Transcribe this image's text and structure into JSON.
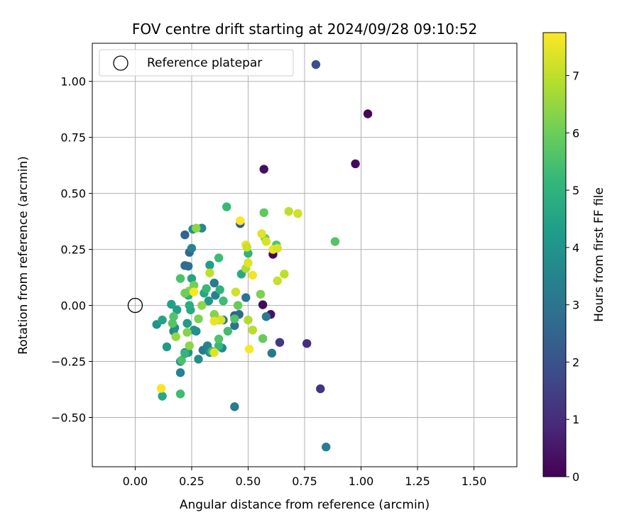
{
  "chart_data": {
    "type": "scatter",
    "title": "FOV centre drift starting at 2024/09/28 09:10:52",
    "xlabel": "Angular distance from reference (arcmin)",
    "ylabel": "Rotation from reference (arcmin)",
    "xlim": [
      -0.19,
      1.69
    ],
    "ylim": [
      -0.72,
      1.17
    ],
    "x_ticks": [
      0.0,
      0.25,
      0.5,
      0.75,
      1.0,
      1.25,
      1.5
    ],
    "x_tick_labels": [
      "0.00",
      "0.25",
      "0.50",
      "0.75",
      "1.00",
      "1.25",
      "1.50"
    ],
    "y_ticks": [
      -0.5,
      -0.25,
      0.0,
      0.25,
      0.5,
      0.75,
      1.0
    ],
    "y_tick_labels": [
      "−0.50",
      "−0.25",
      "0.00",
      "0.25",
      "0.50",
      "0.75",
      "1.00"
    ],
    "grid": true,
    "legend": {
      "position": "top-left",
      "label": "Reference platepar"
    },
    "reference_point": {
      "x": 0.0,
      "y": 0.0
    },
    "colorbar": {
      "label": "Hours from first FF file",
      "min": 0,
      "max": 7.75,
      "ticks": [
        0,
        1,
        2,
        3,
        4,
        5,
        6,
        7
      ],
      "tick_labels": [
        "0",
        "1",
        "2",
        "3",
        "4",
        "5",
        "6",
        "7"
      ],
      "colormap": "viridis",
      "colors": [
        "#440154",
        "#482878",
        "#3e4989",
        "#31688e",
        "#26828e",
        "#1f9e89",
        "#35b779",
        "#6ece58",
        "#b5de2b",
        "#fde725"
      ]
    },
    "series": [
      {
        "points": [
          [
            1.03,
            0.855,
            0.1
          ],
          [
            0.975,
            0.632,
            0.2
          ],
          [
            0.57,
            0.608,
            0.3
          ],
          [
            0.61,
            0.228,
            0.1
          ],
          [
            0.565,
            0.003,
            0.2
          ],
          [
            0.6,
            -0.04,
            0.4
          ],
          [
            0.76,
            -0.17,
            1.0
          ],
          [
            0.64,
            -0.165,
            1.3
          ],
          [
            0.82,
            -0.372,
            1.2
          ],
          [
            0.8,
            1.075,
            1.9
          ],
          [
            0.465,
            0.365,
            2.2
          ],
          [
            0.22,
            0.315,
            2.5
          ],
          [
            0.24,
            0.237,
            2.6
          ],
          [
            0.22,
            0.178,
            2.7
          ],
          [
            0.235,
            0.175,
            2.8
          ],
          [
            0.44,
            -0.045,
            2.4
          ],
          [
            0.46,
            -0.04,
            2.6
          ],
          [
            0.39,
            -0.065,
            2.9
          ],
          [
            0.44,
            -0.09,
            3.0
          ],
          [
            0.49,
            0.035,
            3.0
          ],
          [
            0.58,
            -0.05,
            3.2
          ],
          [
            0.605,
            -0.213,
            3.1
          ],
          [
            0.44,
            -0.452,
            3.2
          ],
          [
            0.845,
            -0.632,
            3.3
          ],
          [
            0.35,
            0.1,
            3.2
          ],
          [
            0.355,
            0.045,
            3.4
          ],
          [
            0.3,
            -0.2,
            3.1
          ],
          [
            0.32,
            -0.18,
            3.5
          ],
          [
            0.25,
            0.255,
            3.5
          ],
          [
            0.295,
            0.345,
            3.7
          ],
          [
            0.255,
            0.34,
            3.9
          ],
          [
            0.2,
            -0.3,
            3.4
          ],
          [
            0.2,
            -0.25,
            3.6
          ],
          [
            0.28,
            -0.24,
            3.8
          ],
          [
            0.235,
            -0.21,
            3.9
          ],
          [
            0.22,
            -0.21,
            3.3
          ],
          [
            0.33,
            -0.21,
            3.8
          ],
          [
            0.385,
            -0.19,
            3.7
          ],
          [
            0.27,
            -0.115,
            3.8
          ],
          [
            0.26,
            -0.11,
            3.9
          ],
          [
            0.17,
            -0.115,
            3.6
          ],
          [
            0.175,
            -0.1,
            3.9
          ],
          [
            0.095,
            -0.085,
            4.0
          ],
          [
            0.23,
            -0.08,
            4.2
          ],
          [
            0.185,
            -0.02,
            4.4
          ],
          [
            0.325,
            0.02,
            4.1
          ],
          [
            0.33,
            0.18,
            4.3
          ],
          [
            0.25,
            0.12,
            4.5
          ],
          [
            0.14,
            -0.185,
            4.2
          ],
          [
            0.12,
            -0.405,
            4.6
          ],
          [
            0.12,
            -0.065,
            4.5
          ],
          [
            0.245,
            -0.02,
            4.7
          ],
          [
            0.24,
            0.0,
            4.8
          ],
          [
            0.235,
            0.045,
            4.9
          ],
          [
            0.16,
            0.005,
            4.4
          ],
          [
            0.305,
            0.055,
            4.6
          ],
          [
            0.47,
            0.14,
            4.7
          ],
          [
            0.5,
            0.232,
            5.0
          ],
          [
            0.405,
            0.44,
            5.2
          ],
          [
            0.37,
            0.212,
            5.3
          ],
          [
            0.375,
            0.07,
            5.0
          ],
          [
            0.39,
            0.02,
            5.3
          ],
          [
            0.41,
            -0.115,
            5.4
          ],
          [
            0.315,
            0.075,
            5.2
          ],
          [
            0.205,
            -0.245,
            5.5
          ],
          [
            0.22,
            -0.215,
            5.1
          ],
          [
            0.2,
            -0.395,
            5.3
          ],
          [
            0.34,
            -0.205,
            5.3
          ],
          [
            0.37,
            -0.18,
            5.2
          ],
          [
            0.37,
            -0.15,
            5.6
          ],
          [
            0.2,
            0.12,
            5.5
          ],
          [
            0.165,
            -0.08,
            5.7
          ],
          [
            0.17,
            -0.05,
            5.6
          ],
          [
            0.44,
            -0.06,
            5.6
          ],
          [
            0.455,
            0.0,
            5.9
          ],
          [
            0.57,
            0.414,
            5.8
          ],
          [
            0.885,
            0.285,
            5.6
          ],
          [
            0.625,
            0.27,
            5.6
          ],
          [
            0.565,
            -0.148,
            5.9
          ],
          [
            0.575,
            0.3,
            6.0
          ],
          [
            0.26,
            0.09,
            6.1
          ],
          [
            0.24,
            0.065,
            6.3
          ],
          [
            0.22,
            0.055,
            6.0
          ],
          [
            0.295,
            0.0,
            6.4
          ],
          [
            0.28,
            -0.06,
            6.2
          ],
          [
            0.23,
            -0.12,
            6.3
          ],
          [
            0.24,
            -0.18,
            6.4
          ],
          [
            0.18,
            -0.14,
            6.5
          ],
          [
            0.27,
            0.345,
            6.4
          ],
          [
            0.35,
            -0.04,
            6.3
          ],
          [
            0.37,
            -0.065,
            6.5
          ],
          [
            0.5,
            -0.065,
            6.8
          ],
          [
            0.52,
            -0.11,
            6.9
          ],
          [
            0.555,
            0.05,
            6.2
          ],
          [
            0.49,
            0.165,
            6.8
          ],
          [
            0.66,
            0.14,
            7.0
          ],
          [
            0.63,
            0.11,
            7.1
          ],
          [
            0.72,
            0.41,
            7.2
          ],
          [
            0.68,
            0.42,
            7.0
          ],
          [
            0.56,
            0.32,
            7.4
          ],
          [
            0.58,
            0.285,
            7.3
          ],
          [
            0.49,
            0.27,
            7.5
          ],
          [
            0.5,
            0.19,
            7.4
          ],
          [
            0.52,
            0.135,
            7.6
          ],
          [
            0.445,
            0.06,
            7.2
          ],
          [
            0.38,
            -0.065,
            7.3
          ],
          [
            0.35,
            -0.07,
            7.5
          ],
          [
            0.35,
            -0.21,
            7.4
          ],
          [
            0.495,
            0.26,
            7.1
          ],
          [
            0.61,
            0.25,
            7.5
          ],
          [
            0.63,
            0.255,
            7.3
          ],
          [
            0.33,
            0.145,
            7.0
          ],
          [
            0.26,
            0.06,
            7.7
          ],
          [
            0.115,
            -0.37,
            7.7
          ],
          [
            0.505,
            -0.195,
            7.7
          ],
          [
            0.465,
            0.378,
            7.7
          ]
        ]
      }
    ]
  }
}
